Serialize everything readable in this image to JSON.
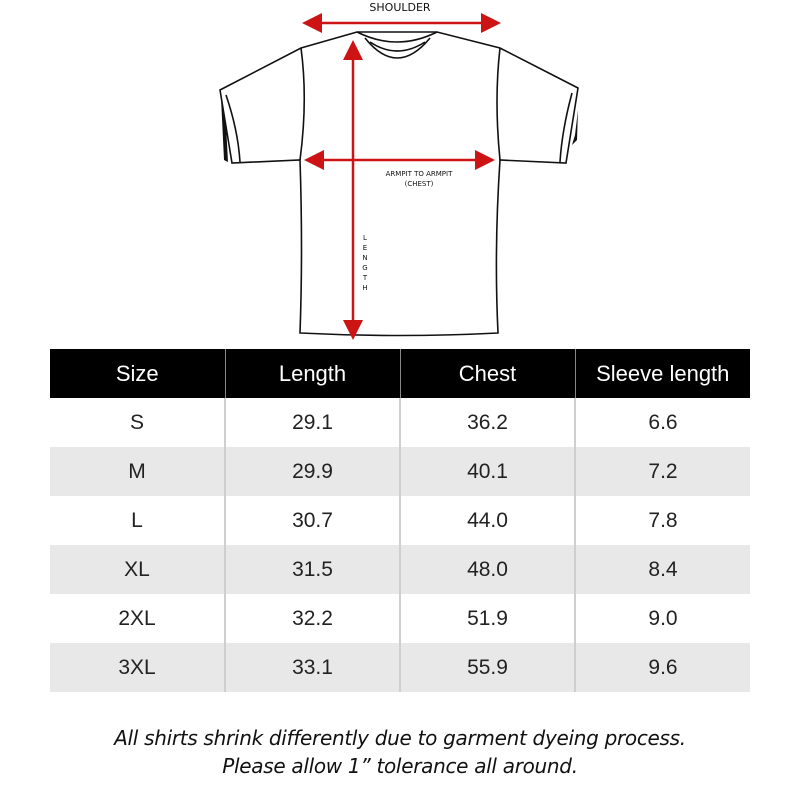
{
  "diagram": {
    "shoulder_label": "SHOULDER",
    "chest_label_line1": "ARMPIT TO ARMPIT",
    "chest_label_line2": "(CHEST)",
    "length_label": "LENGTH",
    "arrow_color": "#cc1414"
  },
  "table": {
    "headers": [
      "Size",
      "Length",
      "Chest",
      "Sleeve length"
    ],
    "rows": [
      [
        "S",
        "29.1",
        "36.2",
        "6.6"
      ],
      [
        "M",
        "29.9",
        "40.1",
        "7.2"
      ],
      [
        "L",
        "30.7",
        "44.0",
        "7.8"
      ],
      [
        "XL",
        "31.5",
        "48.0",
        "8.4"
      ],
      [
        "2XL",
        "32.2",
        "51.9",
        "9.0"
      ],
      [
        "3XL",
        "33.1",
        "55.9",
        "9.6"
      ]
    ]
  },
  "notes": {
    "line1": "All shirts shrink differently due to garment dyeing process.",
    "line2": "Please allow 1” tolerance all around."
  }
}
